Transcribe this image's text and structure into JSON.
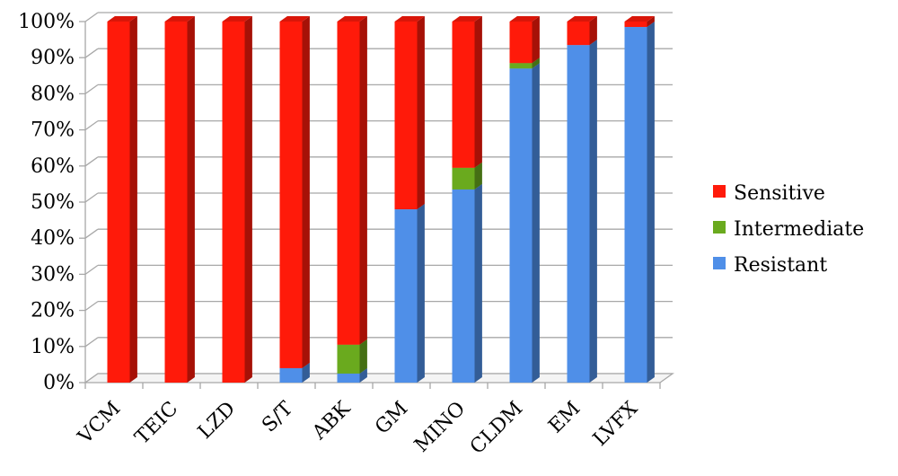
{
  "chart_data": {
    "type": "bar",
    "stacked": true,
    "percent": true,
    "three_d": true,
    "categories": [
      "VCM",
      "TEIC",
      "LZD",
      "S/T",
      "ABK",
      "GM",
      "MINO",
      "CLDM",
      "EM",
      "LVFX"
    ],
    "series": [
      {
        "name": "Resistant",
        "color": "#4f8fe8",
        "values": [
          0,
          0,
          0,
          4,
          2.5,
          48,
          53.5,
          87,
          93.5,
          98.5
        ]
      },
      {
        "name": "Intermediate",
        "color": "#6aaa1e",
        "values": [
          0,
          0,
          0,
          0,
          8,
          0,
          6,
          1.5,
          0,
          0
        ]
      },
      {
        "name": "Sensitive",
        "color": "#ff1a0a",
        "values": [
          100,
          100,
          100,
          96,
          89.5,
          52,
          40.5,
          11.5,
          6.5,
          1.5
        ]
      }
    ],
    "yticks": [
      "0%",
      "10%",
      "20%",
      "30%",
      "40%",
      "50%",
      "60%",
      "70%",
      "80%",
      "90%",
      "100%"
    ],
    "ylim": [
      0,
      100
    ],
    "grid": true,
    "legend_position": "right",
    "legend_order": [
      "Sensitive",
      "Intermediate",
      "Resistant"
    ],
    "title": "",
    "xlabel": "",
    "ylabel": ""
  }
}
